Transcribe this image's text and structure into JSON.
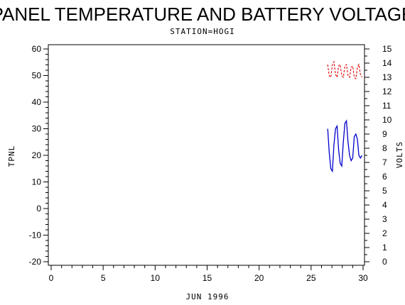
{
  "chart_data": {
    "type": "line",
    "title": "PANEL TEMPERATURE AND BATTERY VOLTAGE",
    "subtitle": "STATION=HOGI",
    "xlabel": "JUN 1996",
    "ylabel_left": "TPNL",
    "ylabel_right": "VOLTS",
    "xlim": [
      0,
      30
    ],
    "ylim_left": [
      -20,
      60
    ],
    "ylim_right": [
      0,
      15
    ],
    "x_ticks": [
      0,
      5,
      10,
      15,
      20,
      25,
      30
    ],
    "y_ticks_left": [
      -20,
      -10,
      0,
      10,
      20,
      30,
      40,
      50,
      60
    ],
    "y_ticks_right": [
      0,
      1,
      2,
      3,
      4,
      5,
      6,
      7,
      8,
      9,
      10,
      11,
      12,
      13,
      14,
      15
    ],
    "grid": false,
    "series": [
      {
        "axis": "left",
        "color": "#0000cc",
        "style": "solid",
        "x": [
          26.6,
          26.75,
          26.9,
          27.05,
          27.2,
          27.35,
          27.5,
          27.65,
          27.8,
          27.95,
          28.1,
          28.25,
          28.4,
          28.55,
          28.7,
          28.85,
          29.0,
          29.15,
          29.3,
          29.45,
          29.6,
          29.75,
          29.9
        ],
        "y": [
          30,
          21,
          15,
          14,
          24,
          30,
          31,
          22,
          17,
          16,
          25,
          32,
          33,
          25,
          20,
          18,
          19,
          27,
          28,
          26,
          20,
          19,
          20
        ]
      },
      {
        "axis": "right",
        "color": "#dd0000",
        "style": "dashed",
        "x": [
          26.6,
          26.75,
          26.9,
          27.05,
          27.2,
          27.35,
          27.5,
          27.65,
          27.8,
          27.95,
          28.1,
          28.25,
          28.4,
          28.55,
          28.7,
          28.85,
          29.0,
          29.15,
          29.3,
          29.45,
          29.6,
          29.75,
          29.9
        ],
        "y": [
          13.9,
          13.1,
          13.0,
          13.9,
          14.1,
          13.2,
          13.0,
          13.8,
          13.9,
          13.1,
          13.0,
          13.8,
          13.9,
          13.1,
          13.0,
          13.7,
          13.8,
          13.0,
          12.9,
          13.7,
          13.9,
          13.2,
          13.0
        ]
      }
    ]
  }
}
